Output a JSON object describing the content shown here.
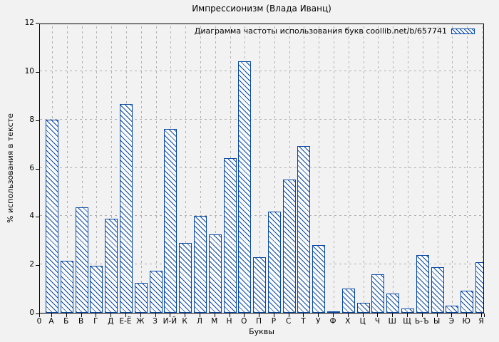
{
  "chart_data": {
    "type": "bar",
    "title": "Импрессионизм (Влада Иванц)",
    "legend": "Диаграмма частоты использования букв coollib.net/b/657741",
    "legend_position": "top-right-inside",
    "xlabel": "Буквы",
    "ylabel": "% использования в тексте",
    "origin_label": "0",
    "categories": [
      "А",
      "Б",
      "В",
      "Г",
      "Д",
      "Е-Ё",
      "Ж",
      "З",
      "И-Й",
      "К",
      "Л",
      "М",
      "Н",
      "О",
      "П",
      "Р",
      "С",
      "Т",
      "У",
      "Ф",
      "Х",
      "Ц",
      "Ч",
      "Ш",
      "Щ",
      "Ь-Ъ",
      "Ы",
      "Э",
      "Ю",
      "Я"
    ],
    "values": [
      8.0,
      2.15,
      4.35,
      1.95,
      3.9,
      8.65,
      1.25,
      1.75,
      7.6,
      2.9,
      4.0,
      3.25,
      6.4,
      10.4,
      2.3,
      4.2,
      5.5,
      6.9,
      2.8,
      0.07,
      1.0,
      0.4,
      1.6,
      0.8,
      0.18,
      2.4,
      1.9,
      0.3,
      0.9,
      2.1
    ],
    "ylim": [
      0,
      12
    ],
    "yticks": [
      0,
      2,
      4,
      6,
      8,
      10,
      12
    ],
    "grid": true,
    "hatch": "\\",
    "bar_color": "#0a49a5",
    "bar_fill": "#fbfbfb",
    "grid_color": "#b0b0b0",
    "background": "#f2f2f2"
  }
}
